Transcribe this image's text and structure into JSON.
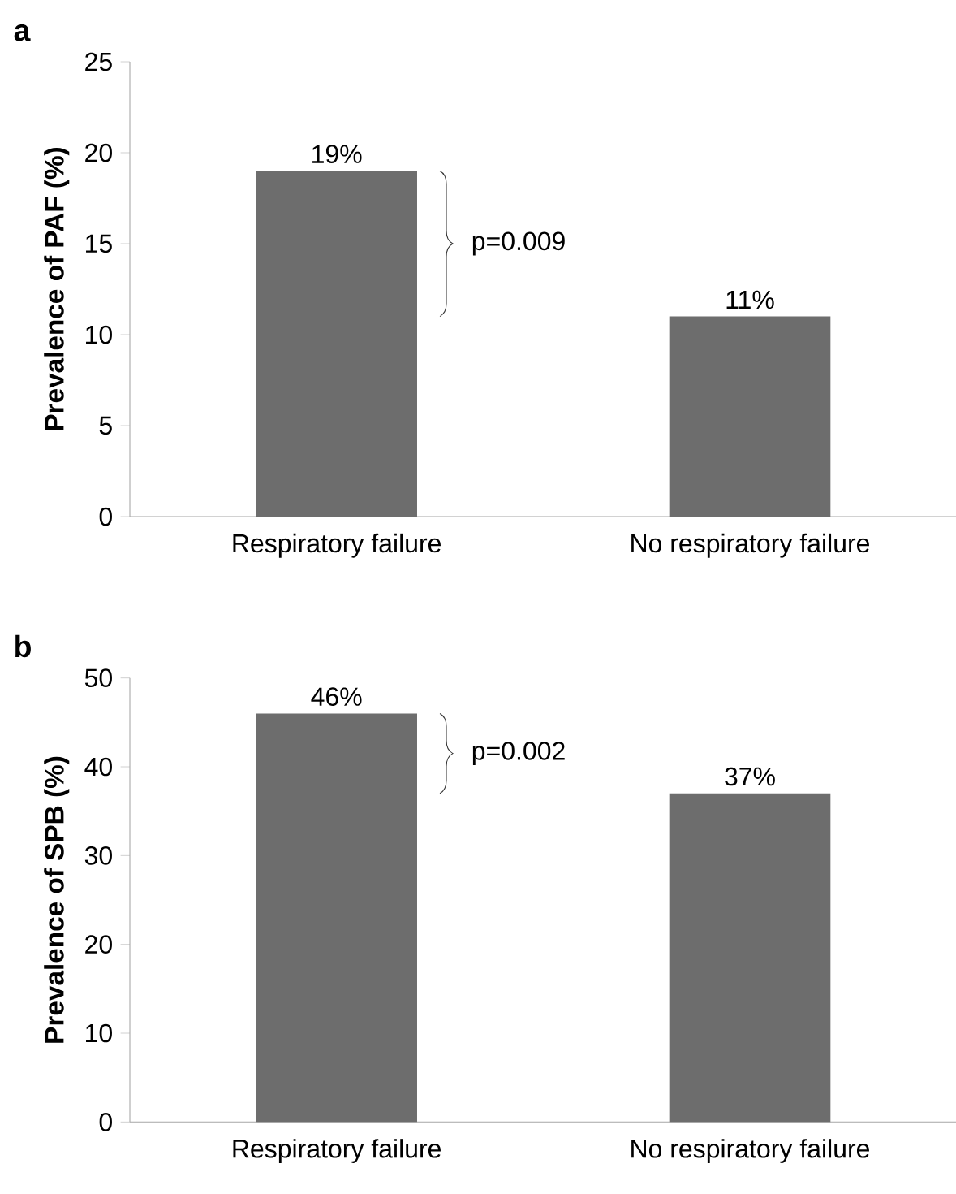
{
  "chart_data": [
    {
      "type": "bar",
      "title": "a",
      "ylabel": "Prevalence of PAF (%)",
      "categories": [
        "Respiratory failure",
        "No respiratory failure"
      ],
      "values": [
        19,
        11
      ],
      "value_labels": [
        "19%",
        "11%"
      ],
      "color": "#6d6d6d",
      "ylim": [
        0,
        25
      ],
      "yticks": [
        0,
        5,
        10,
        15,
        20,
        25
      ],
      "annotations": [
        "p=0.009"
      ]
    },
    {
      "type": "bar",
      "title": "b",
      "ylabel": "Prevalence of SPB (%)",
      "categories": [
        "Respiratory failure",
        "No respiratory failure"
      ],
      "values": [
        46,
        37
      ],
      "value_labels": [
        "46%",
        "37%"
      ],
      "color": "#6d6d6d",
      "ylim": [
        0,
        50
      ],
      "yticks": [
        0,
        10,
        20,
        30,
        40,
        50
      ],
      "annotations": [
        "p=0.002"
      ]
    }
  ]
}
